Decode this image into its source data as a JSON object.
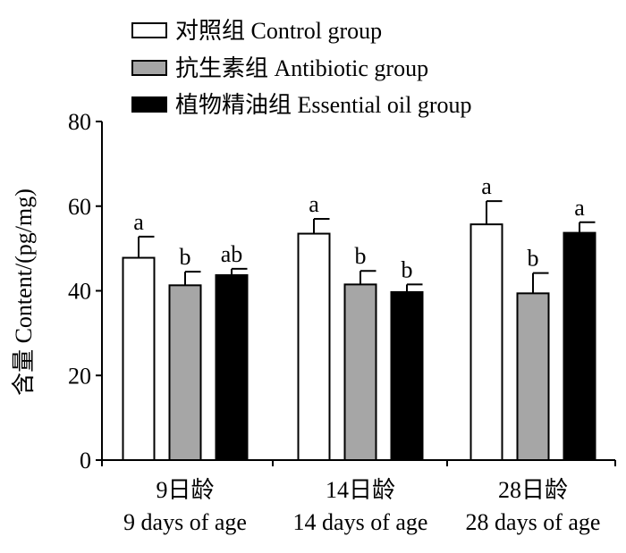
{
  "chart_data": {
    "type": "bar",
    "ylabel": "含量 Content/(pg/mg)",
    "ylim": [
      0,
      80
    ],
    "yticks": [
      0,
      20,
      40,
      60,
      80
    ],
    "categories": [
      {
        "line1": "9日龄",
        "line2": "9 days of age"
      },
      {
        "line1": "14日龄",
        "line2": "14 days of age"
      },
      {
        "line1": "28日龄",
        "line2": "28 days of age"
      }
    ],
    "series": [
      {
        "name": "对照组 Control group",
        "color": "#ffffff",
        "values": [
          47.8,
          53.5,
          55.7
        ],
        "errors": [
          5.0,
          3.5,
          5.5
        ],
        "labels": [
          "a",
          "a",
          "a"
        ]
      },
      {
        "name": "抗生素组 Antibiotic group",
        "color": "#a6a6a6",
        "values": [
          41.3,
          41.5,
          39.4
        ],
        "errors": [
          3.2,
          3.2,
          4.8
        ],
        "labels": [
          "b",
          "b",
          "b"
        ]
      },
      {
        "name": "植物精油组 Essential oil group",
        "color": "#000000",
        "values": [
          43.7,
          39.7,
          53.7
        ],
        "errors": [
          1.5,
          1.8,
          2.5
        ],
        "labels": [
          "ab",
          "b",
          "a"
        ]
      }
    ],
    "legend_position": "top-left",
    "grid": false
  }
}
